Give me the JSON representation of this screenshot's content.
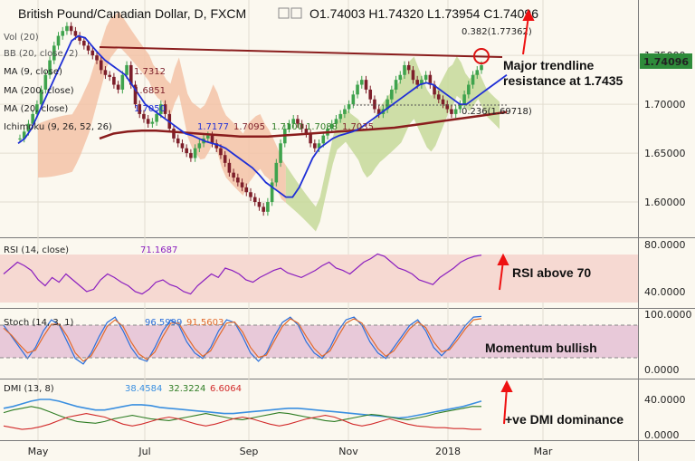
{
  "header": {
    "title": "British Pound/Canadian Dollar, D, FXCM",
    "ohlc": "O1.74003  H1.74320  L1.73954  C1.74096"
  },
  "annotations": {
    "fib_top": "0.382(1.77362)",
    "fib_bottom": "0.236(1.69718)",
    "trendline_1": "Major trendline",
    "trendline_2": "resistance at 1.7435",
    "rsi_note": "RSI above 70",
    "stoch_note": "Momentum bullish",
    "dmi_note": "+ve DMI dominance",
    "sma_value_1": "1.7177",
    "sma_value_2": "1.7095",
    "sma_value_3": "1.7100",
    "sma_value_4": "1.7088",
    "sma_value_5": "1.7035"
  },
  "legend": {
    "vol": "Vol (20)",
    "bb": "BB (20, close, 2)",
    "ma1": "MA (9, close)",
    "ma1_val": "1.7312",
    "ma2": "MA (200, close)",
    "ma2_val": "1.6851",
    "ma3": "MA (20, close)",
    "ma3_val": "1.7050",
    "ichimoku": "Ichimoku (9, 26, 52, 26)"
  },
  "panels": {
    "rsi": {
      "label": "RSI (14, close)",
      "value": "71.1687"
    },
    "stoch": {
      "label": "Stoch (14, 3, 1)",
      "k": "96.5999",
      "d": "91.5603"
    },
    "dmi": {
      "label": "DMI (13, 8)",
      "adx": "38.4584",
      "plus": "32.3224",
      "minus": "6.6064"
    }
  },
  "price_badge": "1.74096",
  "colors": {
    "bull": "#3fa34d",
    "bear": "#7d1f2a",
    "ma20": "#1f2fd6",
    "ma200": "#8a1d1d",
    "trend": "#8a1d1d",
    "cloud_red": "#f3c3a7",
    "cloud_green": "#c5d99a",
    "rsi": "#8b1fbf",
    "stoch_k": "#2a6fdb",
    "stoch_d": "#e26a2c",
    "dmi_plus": "#2f7d24",
    "dmi_minus": "#d22b2b",
    "adx": "#3a8fe0",
    "badge": "#2e8b3a"
  },
  "chart_data": {
    "type": "candlestick",
    "x_labels": [
      "May",
      "Jul",
      "Sep",
      "Nov",
      "2018",
      "Mar"
    ],
    "y_ticks_price": [
      "1.75000",
      "1.70000",
      "1.65000",
      "1.60000"
    ],
    "y_ticks_rsi": [
      "80.0000",
      "40.0000"
    ],
    "y_ticks_stoch": [
      "100.0000",
      "0.0000"
    ],
    "y_ticks_dmi": [
      "40.0000",
      "0.0000"
    ],
    "price_range": [
      1.575,
      1.79
    ],
    "close_path": [
      1.665,
      1.672,
      1.68,
      1.69,
      1.7,
      1.715,
      1.73,
      1.745,
      1.76,
      1.77,
      1.775,
      1.78,
      1.775,
      1.77,
      1.765,
      1.76,
      1.755,
      1.75,
      1.745,
      1.735,
      1.73,
      1.728,
      1.72,
      1.715,
      1.73,
      1.74,
      1.72,
      1.7,
      1.69,
      1.685,
      1.68,
      1.682,
      1.69,
      1.7,
      1.69,
      1.675,
      1.665,
      1.66,
      1.655,
      1.65,
      1.645,
      1.655,
      1.66,
      1.665,
      1.668,
      1.66,
      1.655,
      1.648,
      1.64,
      1.63,
      1.625,
      1.62,
      1.615,
      1.61,
      1.605,
      1.6,
      1.595,
      1.59,
      1.6,
      1.62,
      1.64,
      1.66,
      1.675,
      1.68,
      1.685,
      1.68,
      1.675,
      1.67,
      1.66,
      1.655,
      1.66,
      1.668,
      1.675,
      1.68,
      1.685,
      1.69,
      1.695,
      1.7,
      1.71,
      1.72,
      1.725,
      1.715,
      1.705,
      1.695,
      1.69,
      1.695,
      1.705,
      1.715,
      1.725,
      1.73,
      1.74,
      1.735,
      1.725,
      1.72,
      1.725,
      1.73,
      1.72,
      1.71,
      1.705,
      1.7,
      1.695,
      1.69,
      1.695,
      1.7,
      1.71,
      1.72,
      1.73,
      1.735,
      1.74
    ],
    "ma20_path": [
      1.66,
      1.665,
      1.675,
      1.69,
      1.705,
      1.72,
      1.735,
      1.75,
      1.765,
      1.77,
      1.768,
      1.76,
      1.752,
      1.745,
      1.74,
      1.735,
      1.73,
      1.72,
      1.71,
      1.7,
      1.695,
      1.69,
      1.685,
      1.68,
      1.675,
      1.67,
      1.668,
      1.665,
      1.662,
      1.66,
      1.658,
      1.655,
      1.65,
      1.645,
      1.64,
      1.635,
      1.628,
      1.62,
      1.615,
      1.61,
      1.605,
      1.605,
      1.615,
      1.63,
      1.645,
      1.655,
      1.66,
      1.665,
      1.668,
      1.67,
      1.672,
      1.675,
      1.68,
      1.685,
      1.69,
      1.695,
      1.7,
      1.705,
      1.71,
      1.715,
      1.72,
      1.722,
      1.72,
      1.715,
      1.71,
      1.705,
      1.7,
      1.7,
      1.705,
      1.71,
      1.715,
      1.72,
      1.725,
      1.73
    ],
    "ma200_path": [
      1.665,
      1.67,
      1.672,
      1.673,
      1.673,
      1.672,
      1.671,
      1.67,
      1.669,
      1.668,
      1.667,
      1.667,
      1.667,
      1.668,
      1.669,
      1.67,
      1.671,
      1.672,
      1.673,
      1.674,
      1.675,
      1.676,
      1.678,
      1.68,
      1.682,
      1.684,
      1.686,
      1.688,
      1.69,
      1.692
    ],
    "trendline": [
      [
        0,
        1.757
      ],
      [
        1,
        1.742
      ]
    ],
    "rsi": [
      55,
      60,
      65,
      62,
      58,
      50,
      45,
      52,
      48,
      55,
      50,
      45,
      40,
      42,
      50,
      55,
      52,
      48,
      45,
      40,
      38,
      42,
      48,
      50,
      46,
      44,
      40,
      38,
      45,
      50,
      55,
      52,
      60,
      58,
      55,
      50,
      48,
      52,
      55,
      58,
      60,
      56,
      54,
      52,
      55,
      58,
      62,
      65,
      60,
      58,
      55,
      60,
      65,
      68,
      72,
      70,
      65,
      60,
      58,
      55,
      50,
      48,
      46,
      52,
      56,
      60,
      65,
      68,
      70,
      71
    ],
    "stoch_k": [
      80,
      60,
      40,
      20,
      40,
      70,
      90,
      80,
      50,
      20,
      10,
      30,
      60,
      85,
      95,
      70,
      40,
      20,
      15,
      40,
      70,
      90,
      80,
      50,
      30,
      20,
      40,
      70,
      90,
      85,
      60,
      30,
      15,
      30,
      60,
      85,
      95,
      80,
      50,
      30,
      20,
      40,
      70,
      90,
      95,
      80,
      50,
      30,
      20,
      40,
      60,
      80,
      90,
      70,
      40,
      25,
      40,
      60,
      80,
      95,
      96
    ],
    "stoch_d": [
      75,
      62,
      45,
      30,
      35,
      60,
      82,
      82,
      60,
      30,
      15,
      25,
      50,
      78,
      90,
      78,
      50,
      28,
      18,
      32,
      60,
      84,
      84,
      60,
      38,
      24,
      34,
      60,
      84,
      86,
      68,
      40,
      22,
      26,
      52,
      78,
      92,
      84,
      60,
      38,
      24,
      34,
      60,
      84,
      92,
      84,
      60,
      38,
      24,
      34,
      54,
      74,
      86,
      76,
      50,
      32,
      36,
      54,
      74,
      90,
      92
    ],
    "dmi_adx": [
      30,
      32,
      35,
      38,
      40,
      40,
      38,
      35,
      32,
      30,
      28,
      28,
      30,
      32,
      34,
      34,
      33,
      31,
      30,
      29,
      28,
      27,
      26,
      25,
      24,
      24,
      25,
      26,
      27,
      28,
      29,
      30,
      30,
      29,
      28,
      27,
      26,
      25,
      24,
      23,
      22,
      21,
      20,
      19,
      20,
      22,
      24,
      26,
      28,
      30,
      32,
      35,
      38
    ],
    "dmi_plus": [
      25,
      28,
      30,
      32,
      30,
      26,
      22,
      18,
      15,
      14,
      13,
      15,
      18,
      20,
      22,
      20,
      18,
      17,
      16,
      18,
      20,
      22,
      24,
      22,
      20,
      18,
      17,
      19,
      21,
      23,
      25,
      24,
      22,
      20,
      18,
      16,
      15,
      17,
      19,
      21,
      23,
      22,
      20,
      18,
      17,
      19,
      21,
      24,
      26,
      28,
      30,
      32,
      32
    ],
    "dmi_minus": [
      10,
      8,
      6,
      7,
      9,
      12,
      16,
      20,
      22,
      24,
      22,
      20,
      16,
      12,
      10,
      12,
      15,
      18,
      20,
      18,
      15,
      12,
      10,
      12,
      15,
      18,
      20,
      18,
      15,
      12,
      10,
      12,
      15,
      18,
      20,
      22,
      20,
      16,
      12,
      10,
      12,
      15,
      18,
      15,
      12,
      10,
      9,
      8,
      8,
      7,
      7,
      6,
      6
    ]
  }
}
